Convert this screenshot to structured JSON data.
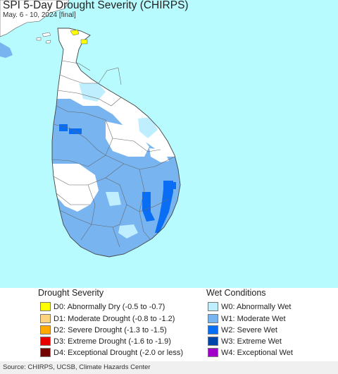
{
  "header": {
    "title": "SPI 5-Day Drought Severity (CHIRPS)",
    "subtitle": "May. 6 - 10, 2024 [final]"
  },
  "legend": {
    "drought_title": "Drought Severity",
    "drought_items": [
      {
        "label": "D0: Abnormally Dry (-0.5 to -0.7)",
        "color": "#ffff00"
      },
      {
        "label": "D1: Moderate Drought (-0.8 to -1.2)",
        "color": "#fcd37f"
      },
      {
        "label": "D2: Severe Drought (-1.3 to -1.5)",
        "color": "#ffaa00"
      },
      {
        "label": "D3: Extreme Drought (-1.6 to -1.9)",
        "color": "#e60000"
      },
      {
        "label": "D4: Exceptional Drought (-2.0 or less)",
        "color": "#730000"
      }
    ],
    "wet_title": "Wet Conditions",
    "wet_items": [
      {
        "label": "W0: Abnormally Wet",
        "color": "#bfefff"
      },
      {
        "label": "W1: Moderate Wet",
        "color": "#78b4f0"
      },
      {
        "label": "W2: Severe Wet",
        "color": "#0a6ef5"
      },
      {
        "label": "W3: Extreme Wet",
        "color": "#0046a8"
      },
      {
        "label": "W4: Exceptional Wet",
        "color": "#a000c8"
      }
    ]
  },
  "footer": {
    "credit": "Source: CHIRPS, UCSB, Climate Hazards Center"
  },
  "map_colors": {
    "ocean": "#b7fbff",
    "land": "#ffffff",
    "border": "#555555"
  }
}
